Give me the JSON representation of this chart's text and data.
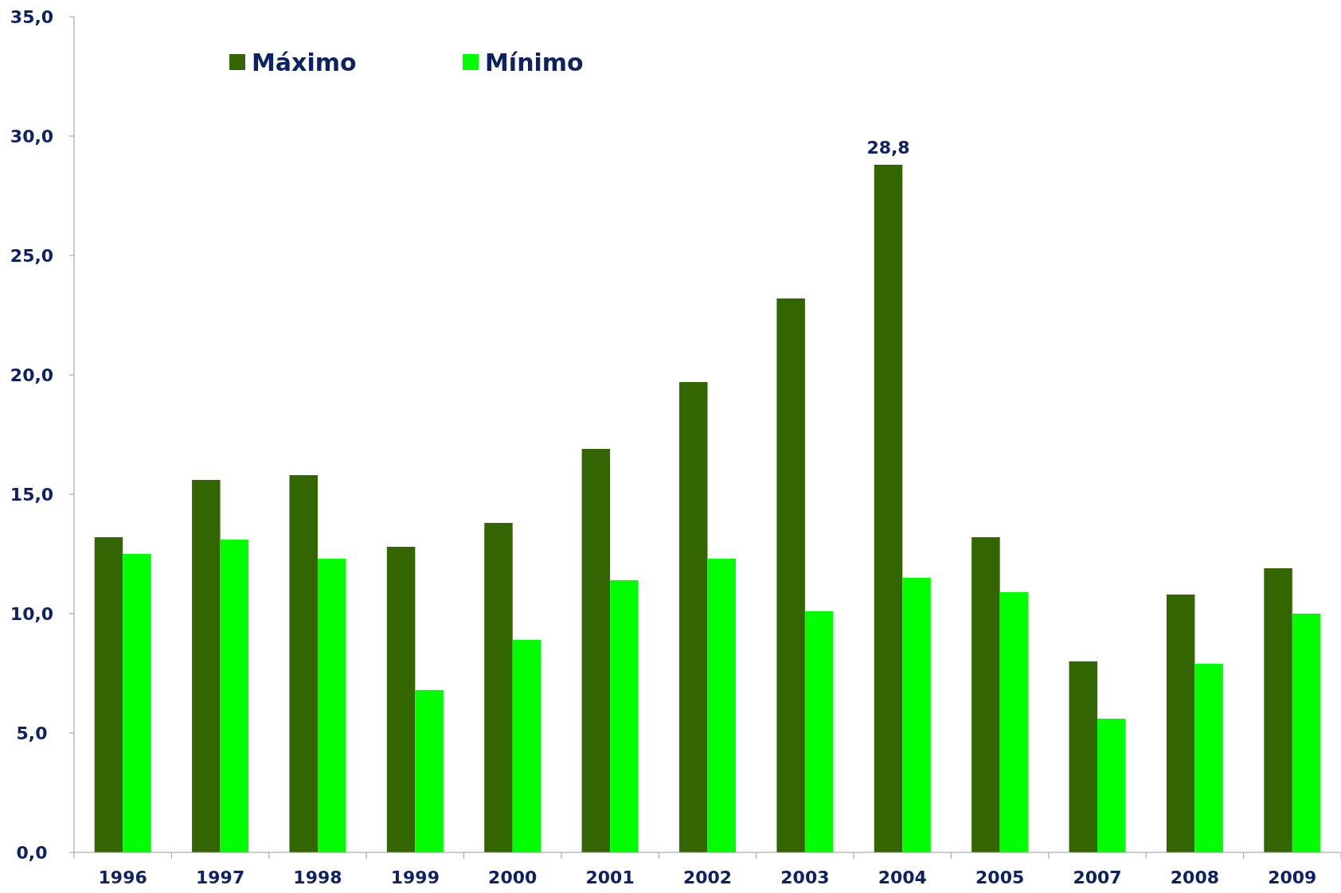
{
  "chart_data": {
    "type": "bar",
    "categories": [
      "1996",
      "1997",
      "1998",
      "1999",
      "2000",
      "2001",
      "2002",
      "2003",
      "2004",
      "2005",
      "2007",
      "2008",
      "2009"
    ],
    "series": [
      {
        "name": "Máximo",
        "color": "#336600",
        "values": [
          13.2,
          15.6,
          15.8,
          12.8,
          13.8,
          16.9,
          19.7,
          23.2,
          28.8,
          13.2,
          8.0,
          10.8,
          11.9
        ],
        "value_labels": [
          null,
          null,
          null,
          null,
          null,
          null,
          null,
          null,
          "28,8",
          null,
          null,
          null,
          null
        ]
      },
      {
        "name": "Mínimo",
        "color": "#00ff00",
        "values": [
          12.5,
          13.1,
          12.3,
          6.8,
          8.9,
          11.4,
          12.3,
          10.1,
          11.5,
          10.9,
          5.6,
          7.9,
          10.0
        ]
      }
    ],
    "ylim": [
      0,
      35
    ],
    "yticks": [
      {
        "value": 0,
        "label": "0,0"
      },
      {
        "value": 5,
        "label": "5,0"
      },
      {
        "value": 10,
        "label": "10,0"
      },
      {
        "value": 15,
        "label": "15,0"
      },
      {
        "value": 20,
        "label": "20,0"
      },
      {
        "value": 25,
        "label": "25,0"
      },
      {
        "value": 30,
        "label": "30,0"
      },
      {
        "value": 35,
        "label": "35,0"
      }
    ],
    "legend": "top left"
  }
}
